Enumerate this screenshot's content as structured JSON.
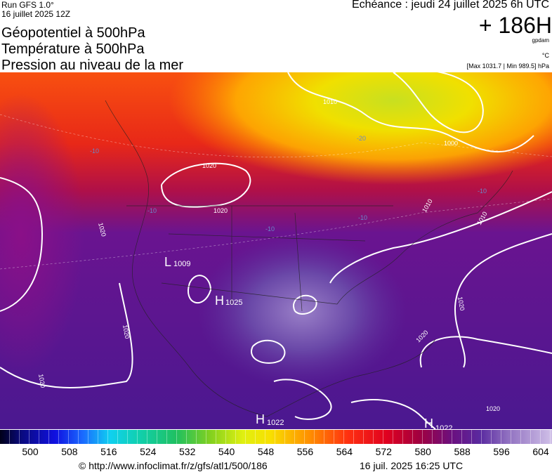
{
  "header": {
    "run": "Run GFS 1.0°",
    "run_date": "16 juillet 2025 12Z",
    "forecast": "Echéance : jeudi 24 juillet 2025 6h UTC",
    "lead": "+ 186H",
    "unit_gpdam": "gpdam",
    "unit_temp": "°C",
    "pressure_range": "[Max 1031.7 | Min 989.5] hPa",
    "titles": [
      "Géopotentiel à 500hPa",
      "Température à 500hPa",
      "Pression au niveau de la mer"
    ]
  },
  "map": {
    "isobar_labels": [
      "1010",
      "1000",
      "1020",
      "1020",
      "1020",
      "1010",
      "1010",
      "1020",
      "1020",
      "1020",
      "1020",
      "1020"
    ],
    "temp_labels": [
      "-20",
      "-10",
      "-10",
      "-10",
      "-10",
      "-10"
    ],
    "centers": [
      {
        "letter": "L",
        "value": "1009"
      },
      {
        "letter": "H",
        "value": "1025"
      },
      {
        "letter": "H",
        "value": "1022"
      },
      {
        "letter": "H",
        "value": "1022"
      }
    ]
  },
  "legend": {
    "ticks": [
      "500",
      "508",
      "516",
      "524",
      "532",
      "540",
      "548",
      "556",
      "564",
      "572",
      "580",
      "588",
      "596",
      "604"
    ]
  },
  "footer": {
    "source": "© http://www.infoclimat.fr/z/gfs/atl1/500/186",
    "generated": "16 juil. 2025 16:25 UTC"
  }
}
